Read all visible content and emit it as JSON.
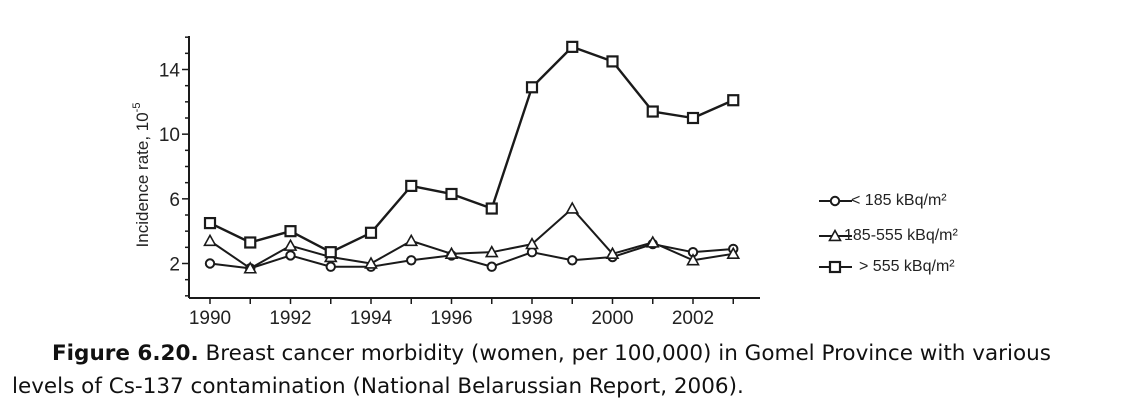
{
  "figure": {
    "label": "Figure 6.20.",
    "caption": "Breast cancer morbidity (women, per 100,000) in Gomel Province with various levels of Cs-137 contamination (National Belarussian Report, 2006)."
  },
  "chart_data": {
    "type": "line",
    "title": "",
    "xlabel": "",
    "ylabel": "Incidence rate, 10",
    "ylabel_exponent": "-5",
    "xlim": [
      1989.9,
      2005
    ],
    "ylim": [
      0,
      16.5
    ],
    "x_ticks": [
      1990,
      1992,
      1994,
      1996,
      1998,
      2000,
      2002
    ],
    "y_ticks": [
      2,
      6,
      10,
      14
    ],
    "grid": false,
    "legend_position": "right",
    "x": [
      1990,
      1991,
      1992,
      1993,
      1994,
      1995,
      1996,
      1997,
      1998,
      1999,
      2000,
      2001,
      2002,
      2003
    ],
    "series": [
      {
        "name": "< 185 kBq/m²",
        "marker": "circle",
        "values": [
          2.0,
          1.7,
          2.5,
          1.8,
          1.8,
          2.2,
          2.5,
          1.8,
          2.7,
          2.2,
          2.4,
          3.2,
          2.7,
          2.9
        ]
      },
      {
        "name": "185-555 kBq/m²",
        "marker": "triangle",
        "values": [
          3.4,
          1.7,
          3.1,
          2.4,
          2.0,
          3.4,
          2.6,
          2.7,
          3.2,
          5.4,
          2.6,
          3.3,
          2.2,
          2.6
        ]
      },
      {
        "name": "> 555 kBq/m²",
        "marker": "square",
        "values": [
          4.5,
          3.3,
          4.0,
          2.7,
          3.9,
          6.8,
          6.3,
          5.4,
          12.9,
          15.4,
          14.5,
          11.4,
          11.0,
          12.1
        ]
      }
    ],
    "colors": {
      "line": "#1a1a1a",
      "marker_fill": "#ffffff"
    }
  }
}
